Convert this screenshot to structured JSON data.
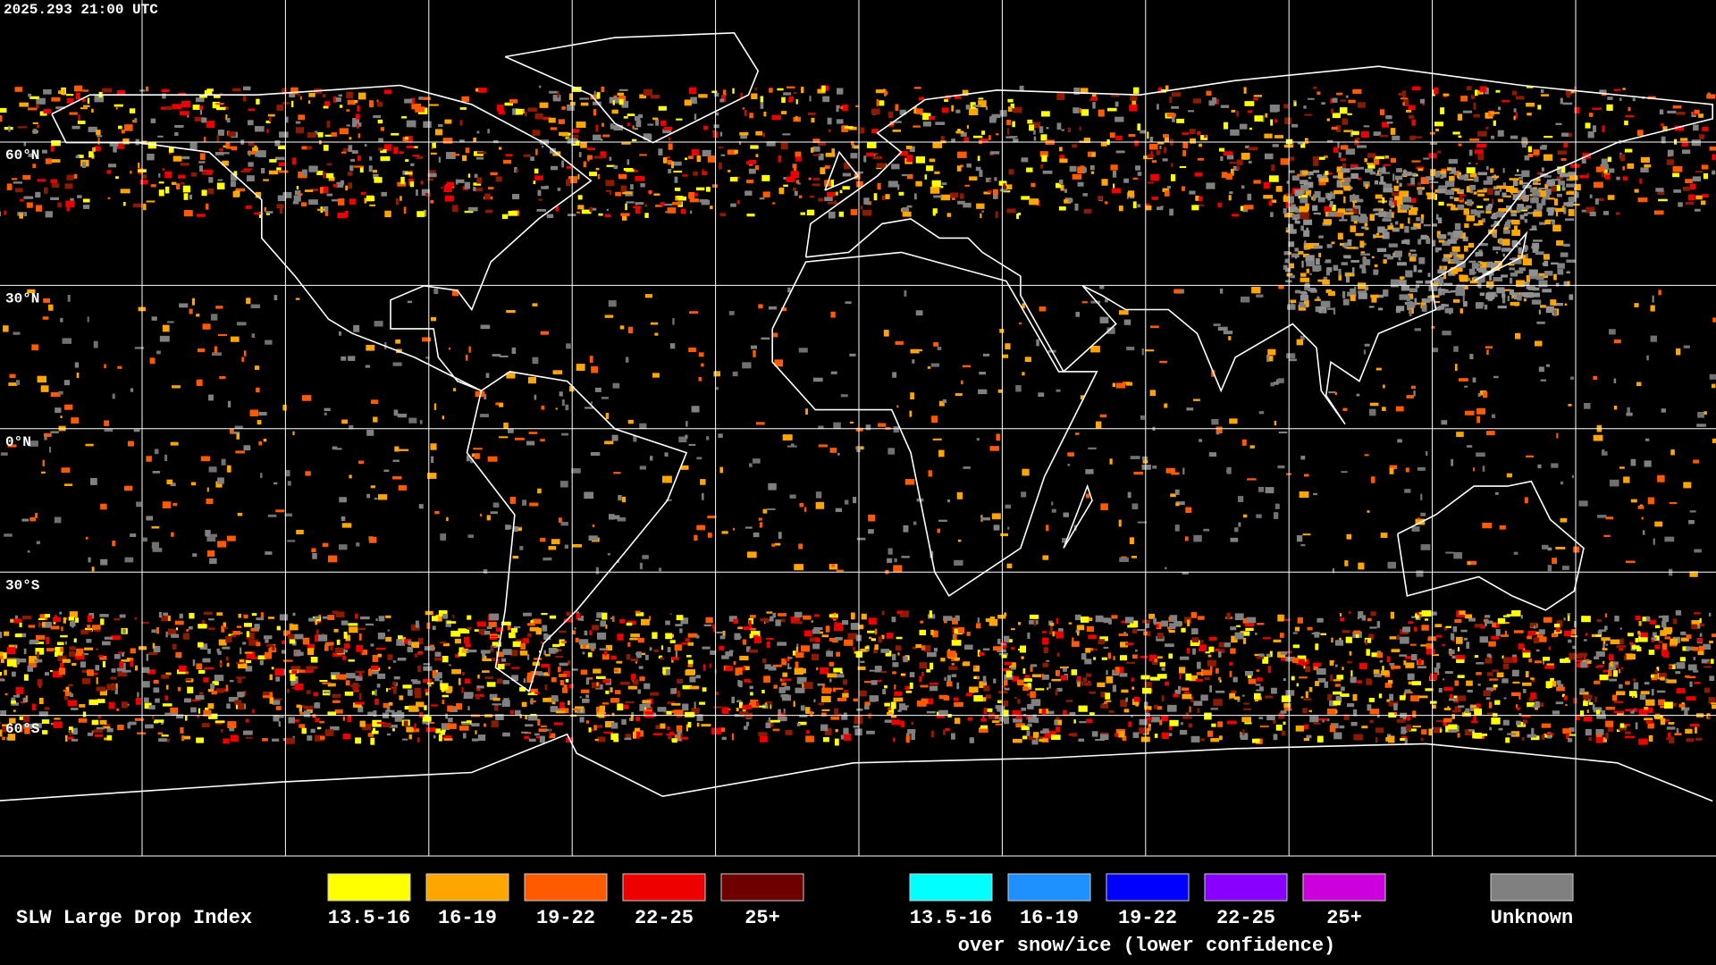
{
  "header": {
    "timestamp": "2025.293 21:00 UTC"
  },
  "map": {
    "lat_labels": [
      "60°N",
      "30°N",
      "0°N",
      "30°S",
      "60°S"
    ]
  },
  "legend": {
    "title": "SLW Large Drop Index",
    "groups": [
      {
        "items": [
          {
            "label": "13.5-16",
            "color": "#ffff00"
          },
          {
            "label": "16-19",
            "color": "#ffa500"
          },
          {
            "label": "19-22",
            "color": "#ff5a00"
          },
          {
            "label": "22-25",
            "color": "#ee0000"
          },
          {
            "label": "25+",
            "color": "#6e0000"
          }
        ]
      },
      {
        "items": [
          {
            "label": "13.5-16",
            "color": "#00ffff"
          },
          {
            "label": "16-19",
            "color": "#1e90ff"
          },
          {
            "label": "19-22",
            "color": "#0000ff"
          },
          {
            "label": "22-25",
            "color": "#8a00ff"
          },
          {
            "label": "25+",
            "color": "#cc00dd"
          }
        ],
        "caption": "over snow/ice (lower confidence)"
      },
      {
        "items": [
          {
            "label": "Unknown",
            "color": "#808080"
          }
        ]
      }
    ]
  }
}
